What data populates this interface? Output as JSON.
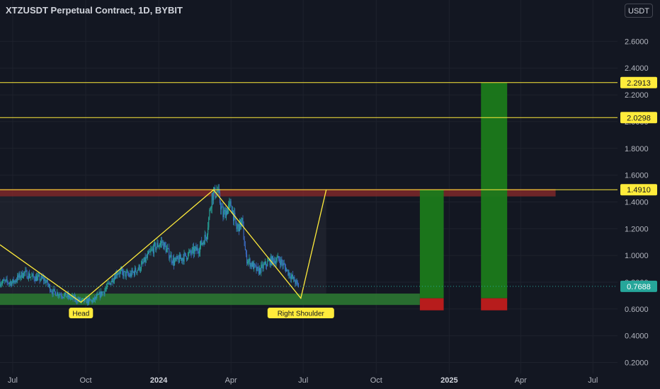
{
  "header": {
    "title": "XTZUSDT Perpetual Contract, 1D, BYBIT",
    "currency_button": "USDT"
  },
  "colors": {
    "background": "#131722",
    "grid": "#1e222d",
    "axis_text": "#b2b5be",
    "level_line": "#ffeb3b",
    "candle_up": "#26a69a",
    "candle_down": "#3c6ec8",
    "target_zone": "#1b7a1b",
    "stop_zone": "#b71c1c",
    "resistance_zone": "#8e2b2b",
    "support_zone": "#2e7d32",
    "last_price": "#26a69a"
  },
  "chart_data": {
    "type": "candlestick",
    "symbol": "XTZUSDT Perpetual Contract",
    "interval": "1D",
    "exchange": "BYBIT",
    "y_axis": {
      "ticks": [
        2.6,
        2.4,
        2.2,
        2.0,
        1.8,
        1.6,
        1.4,
        1.2,
        1.0,
        0.8,
        0.6,
        0.4,
        0.2
      ],
      "tick_labels": [
        "2.6000",
        "2.4000",
        "2.2000",
        "2.0000",
        "1.8000",
        "1.6000",
        "1.4000",
        "1.2000",
        "1.0000",
        "0.8000",
        "0.6000",
        "0.4000",
        "0.2000"
      ],
      "range": [
        0.15,
        2.75
      ]
    },
    "x_axis": {
      "tick_labels": [
        "Jul",
        "Oct",
        "2024",
        "Apr",
        "Jul",
        "Oct",
        "2025",
        "Apr",
        "Jul"
      ],
      "tick_dates": [
        "2023-07-01",
        "2023-10-01",
        "2024-01-01",
        "2024-04-01",
        "2024-07-01",
        "2024-10-01",
        "2025-01-01",
        "2025-04-01",
        "2025-07-01"
      ],
      "range": [
        "2023-06-15",
        "2025-08-01"
      ]
    },
    "price_levels": [
      {
        "value": 2.2913,
        "label": "2.2913"
      },
      {
        "value": 2.0298,
        "label": "2.0298"
      },
      {
        "value": 1.491,
        "label": "1.4910"
      }
    ],
    "last_price": {
      "value": 0.7688,
      "label": "0.7688"
    },
    "pattern": {
      "name": "head and shoulders",
      "points": [
        {
          "date": "2023-06-15",
          "price": 1.08
        },
        {
          "date": "2023-09-25",
          "price": 0.65
        },
        {
          "date": "2024-03-10",
          "price": 1.49
        },
        {
          "date": "2024-06-28",
          "price": 0.68
        },
        {
          "date": "2024-07-30",
          "price": 1.49
        }
      ],
      "labels": [
        {
          "text": "Head",
          "date": "2023-09-25",
          "price": 0.62
        },
        {
          "text": "Right Shoulder",
          "date": "2024-06-28",
          "price": 0.62
        }
      ]
    },
    "zones": [
      {
        "kind": "resistance",
        "from": "2023-06-15",
        "to": "2025-05-15",
        "low": 1.441,
        "high": 1.496
      },
      {
        "kind": "support",
        "from": "2023-06-15",
        "to": "2024-11-25",
        "low": 0.63,
        "high": 0.715
      },
      {
        "kind": "target",
        "from": "2024-11-25",
        "to": "2024-12-25",
        "low": 0.68,
        "high": 1.491
      },
      {
        "kind": "stop",
        "from": "2024-11-25",
        "to": "2024-12-25",
        "low": 0.59,
        "high": 0.68
      },
      {
        "kind": "target",
        "from": "2025-02-10",
        "to": "2025-03-15",
        "low": 0.68,
        "high": 2.2913
      },
      {
        "kind": "stop",
        "from": "2025-02-10",
        "to": "2025-03-15",
        "low": 0.59,
        "high": 0.68
      }
    ],
    "price_path": [
      [
        "2023-06-15",
        0.8
      ],
      [
        "2023-07-01",
        0.8
      ],
      [
        "2023-07-15",
        0.87
      ],
      [
        "2023-07-25",
        0.84
      ],
      [
        "2023-08-10",
        0.82
      ],
      [
        "2023-08-20",
        0.73
      ],
      [
        "2023-09-10",
        0.69
      ],
      [
        "2023-09-25",
        0.66
      ],
      [
        "2023-10-10",
        0.66
      ],
      [
        "2023-10-25",
        0.74
      ],
      [
        "2023-11-10",
        0.88
      ],
      [
        "2023-11-25",
        0.85
      ],
      [
        "2023-12-10",
        0.92
      ],
      [
        "2023-12-25",
        1.05
      ],
      [
        "2024-01-05",
        1.1
      ],
      [
        "2024-01-20",
        0.95
      ],
      [
        "2024-02-05",
        1.0
      ],
      [
        "2024-02-20",
        1.05
      ],
      [
        "2024-03-01",
        1.15
      ],
      [
        "2024-03-08",
        1.45
      ],
      [
        "2024-03-15",
        1.48
      ],
      [
        "2024-03-22",
        1.3
      ],
      [
        "2024-04-01",
        1.38
      ],
      [
        "2024-04-08",
        1.2
      ],
      [
        "2024-04-15",
        1.25
      ],
      [
        "2024-04-20",
        0.98
      ],
      [
        "2024-05-05",
        0.88
      ],
      [
        "2024-05-20",
        0.96
      ],
      [
        "2024-06-01",
        0.97
      ],
      [
        "2024-06-15",
        0.85
      ],
      [
        "2024-06-25",
        0.77
      ]
    ]
  }
}
